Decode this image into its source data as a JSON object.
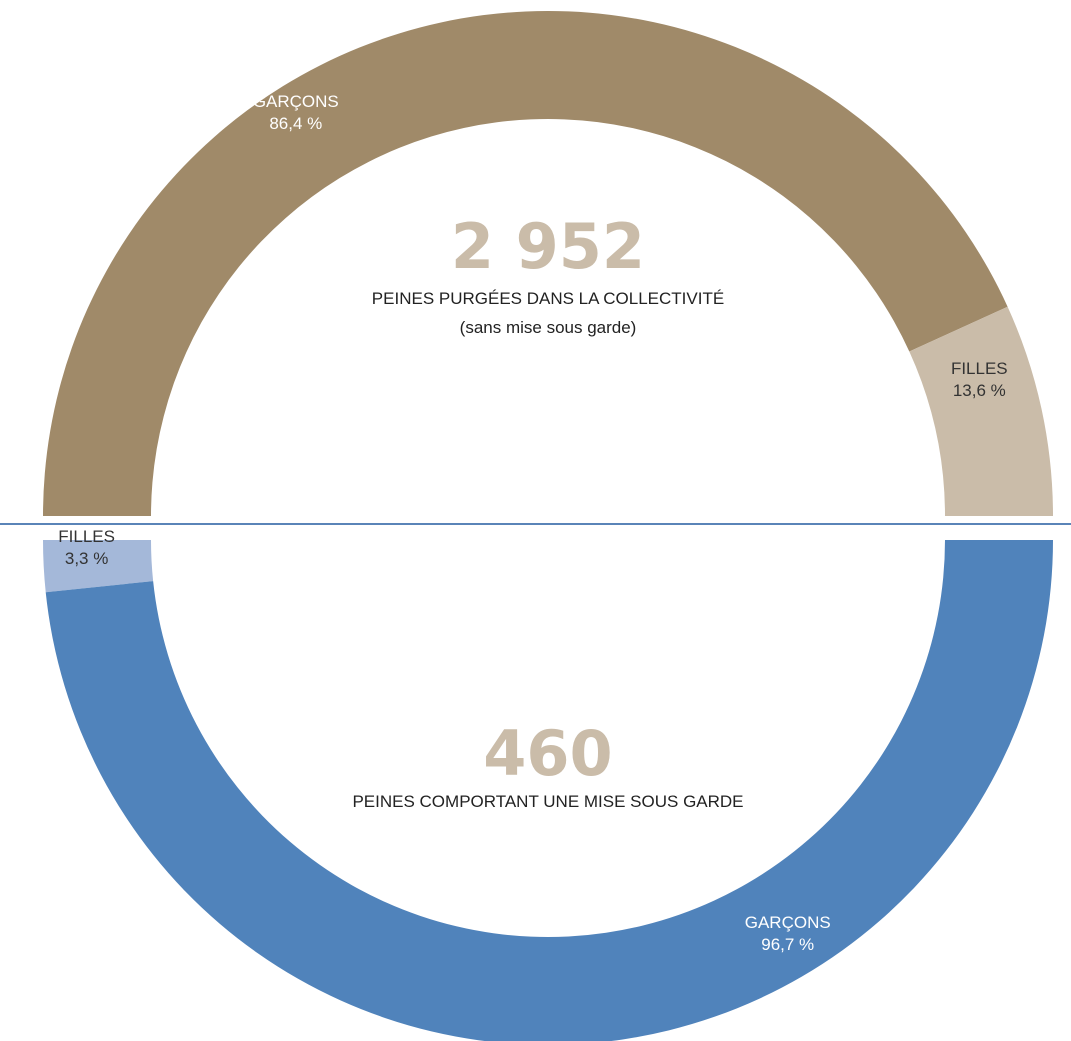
{
  "chart_data": [
    {
      "type": "pie",
      "variant": "half-donut",
      "orientation": "upper",
      "total": "2 952",
      "caption": "PEINES PURGÉES DANS LA COLLECTIVITÉ",
      "subcaption": "(sans mise sous garde)",
      "slices": [
        {
          "name": "GARÇONS",
          "value": 86.4,
          "display": "86,4 %",
          "color": "#a08a69",
          "label_color": "#ffffff"
        },
        {
          "name": "FILLES",
          "value": 13.6,
          "display": "13,6 %",
          "color": "#cabca9",
          "label_color": "#333333"
        }
      ]
    },
    {
      "type": "pie",
      "variant": "half-donut",
      "orientation": "lower",
      "total": "460",
      "caption": "PEINES COMPORTANT UNE MISE SOUS GARDE",
      "subcaption": "",
      "slices": [
        {
          "name": "FILLES",
          "value": 3.3,
          "display": "3,3 %",
          "color": "#a4b8d9",
          "label_color": "#333333"
        },
        {
          "name": "GARÇONS",
          "value": 96.7,
          "display": "96,7 %",
          "color": "#5083bb",
          "label_color": "#ffffff"
        }
      ]
    }
  ],
  "colors": {
    "divider": "#5a84b8",
    "total_number": "#cabca9",
    "caption": "#222222"
  }
}
